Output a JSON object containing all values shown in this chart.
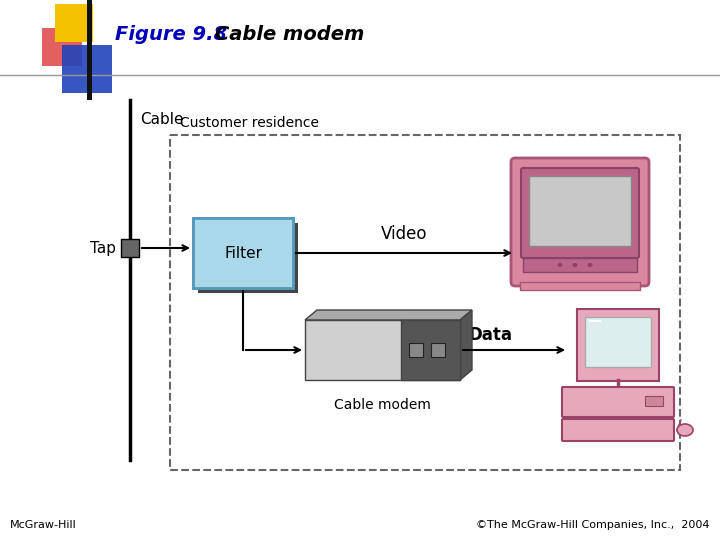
{
  "title": "Figure 9.8",
  "subtitle": "   Cable modem",
  "title_color": "#0000bb",
  "footer_left": "McGraw-Hill",
  "footer_right": "©The McGraw-Hill Companies, Inc.,  2004",
  "bg_color": "#ffffff",
  "customer_label": "Customer residence",
  "cable_label": "Cable",
  "tap_label": "Tap",
  "filter_label": "Filter",
  "video_label": "Video",
  "data_label": "Data",
  "modem_label": "Cable modem"
}
